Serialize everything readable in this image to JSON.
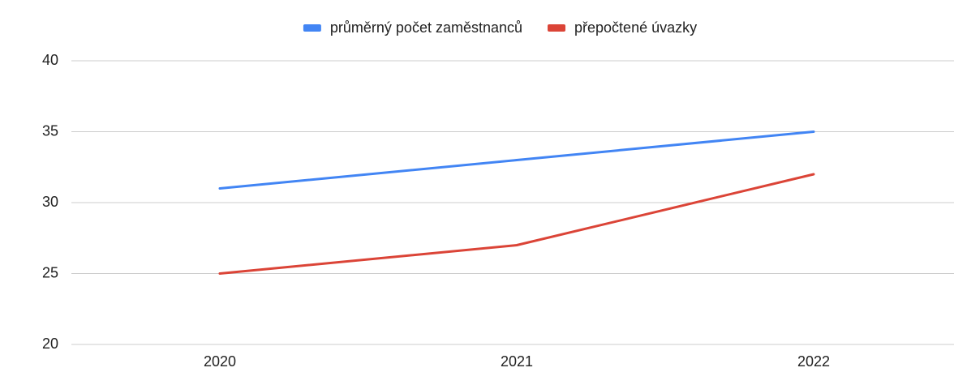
{
  "chart_data": {
    "type": "line",
    "categories": [
      "2020",
      "2021",
      "2022"
    ],
    "series": [
      {
        "name": "průměrný počet zaměstnanců",
        "color": "#4285f4",
        "values": [
          31,
          33,
          35
        ]
      },
      {
        "name": "přepočtené úvazky",
        "color": "#db4437",
        "values": [
          25,
          27,
          32
        ]
      }
    ],
    "ylim": [
      20,
      40
    ],
    "yticks": [
      20,
      25,
      30,
      35,
      40
    ],
    "grid": true,
    "legend": "top"
  }
}
